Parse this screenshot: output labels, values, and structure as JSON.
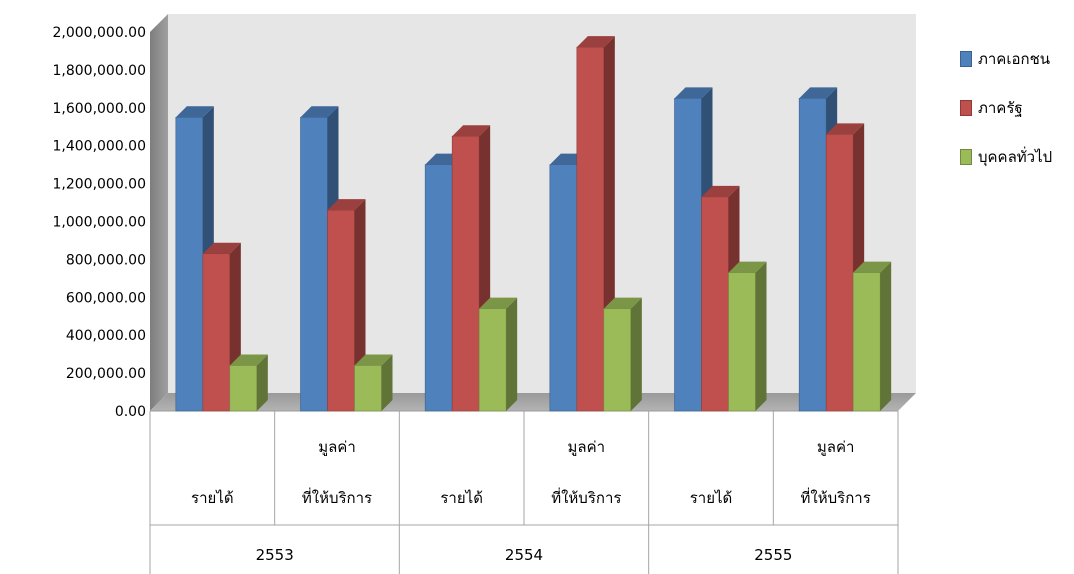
{
  "chart_data": {
    "type": "bar",
    "three_d": true,
    "y_ticks": [
      "0.00",
      "200,000.00",
      "400,000.00",
      "600,000.00",
      "800,000.00",
      "1,000,000.00",
      "1,200,000.00",
      "1,400,000.00",
      "1,600,000.00",
      "1,800,000.00",
      "2,000,000.00"
    ],
    "ylim": [
      0,
      2000000
    ],
    "categories": [
      {
        "year": "2553",
        "label_lines": [
          "รายได้"
        ]
      },
      {
        "year": "2553",
        "label_lines": [
          "มูลค่า",
          "ที่ให้บริการ"
        ]
      },
      {
        "year": "2554",
        "label_lines": [
          "รายได้"
        ]
      },
      {
        "year": "2554",
        "label_lines": [
          "มูลค่า",
          "ที่ให้บริการ"
        ]
      },
      {
        "year": "2555",
        "label_lines": [
          "รายได้"
        ]
      },
      {
        "year": "2555",
        "label_lines": [
          "มูลค่า",
          "ที่ให้บริการ"
        ]
      }
    ],
    "groups": [
      "2553",
      "2554",
      "2555"
    ],
    "series": [
      {
        "name": "ภาคเอกชน",
        "color": "#4f81bd",
        "values": [
          1550000,
          1550000,
          1300000,
          1300000,
          1650000,
          1650000
        ]
      },
      {
        "name": "ภาครัฐ",
        "color": "#c0504d",
        "values": [
          830000,
          1060000,
          1450000,
          1920000,
          1130000,
          1460000
        ]
      },
      {
        "name": "บุคคลทั่วไป",
        "color": "#9bbb59",
        "values": [
          240000,
          240000,
          540000,
          540000,
          730000,
          730000
        ]
      }
    ],
    "legend_position": "right",
    "grid": false
  }
}
